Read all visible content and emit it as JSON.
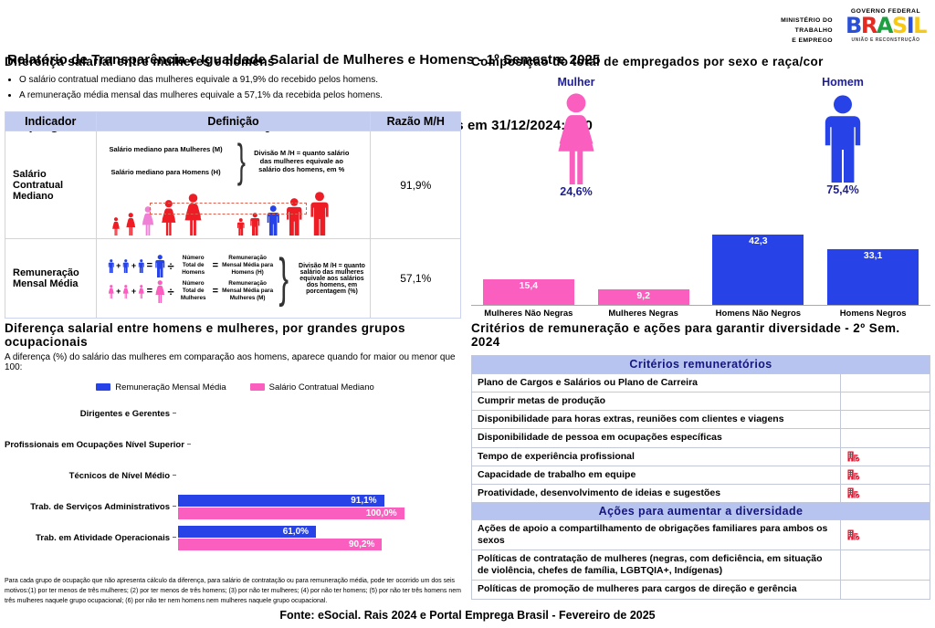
{
  "header": {
    "title_line1": "Relatório de Transparência e Igualdade Salarial de Mulheres e Homens - 1º Semestre 2025",
    "title_line2": "Empregador: 10.839.911/0001-60    /     Quant. de trabalhadores ativos em 31/12/2024: 130",
    "ministry": [
      "MINISTÉRIO DO",
      "TRABALHO",
      "E EMPREGO"
    ],
    "gov": {
      "top": "GOVERNO FEDERAL",
      "brand_letters": [
        {
          "c": "B",
          "color": "#2b50d8"
        },
        {
          "c": "R",
          "color": "#e52a22"
        },
        {
          "c": "A",
          "color": "#1f9e42"
        },
        {
          "c": "S",
          "color": "#f7c915"
        },
        {
          "c": "I",
          "color": "#2b50d8"
        },
        {
          "c": "L",
          "color": "#f7c915"
        }
      ],
      "bottom": "UNIÃO E RECONSTRUÇÃO"
    }
  },
  "pay_gap": {
    "title": "Diferença salarial entre mulheres e homens",
    "bullets": [
      "O salário contratual mediano das mulheres equivale a 91,9% do recebido pelos homens.",
      "A remuneração média mensal das mulheres equivale a 57,1% da recebida pelos homens."
    ],
    "symbols": {
      "plus": "+",
      "equals": "=",
      "divide": "÷"
    },
    "table": {
      "headers": [
        "Indicador",
        "Definição",
        "Razão M/H"
      ],
      "rows": [
        {
          "indicator": "Salário Contratual Mediano",
          "def_lines": [
            "Salário mediano para Mulheres (M)",
            "Salário mediano para Homens (H)"
          ],
          "def_note": "Divisão M /H = quanto salário das mulheres equivale ao salário dos homens, em %",
          "ratio": "91,9%"
        },
        {
          "indicator": "Remuneração Mensal Média",
          "men_divisor": "Número Total de Homens",
          "men_result": "Remuneração Mensal Média para Homens (H)",
          "women_divisor": "Número Total de Mulheres",
          "women_result": "Remuneração Mensal Média para Mulheres (M)",
          "def_note": "Divisão M /H = quanto salário das mulheres equivale aos salários dos homens, em porcentagem (%)",
          "ratio": "57,1%"
        }
      ]
    }
  },
  "composition": {
    "title": "Composição do total de empregados por sexo e raça/cor",
    "female_label": "Mulher",
    "female_value": "24,6%",
    "male_label": "Homem",
    "male_value": "75,4%"
  },
  "occupations": {
    "title": "Diferença salarial entre homens e mulheres, por grandes grupos ocupacionais",
    "subtitle": "A diferença (%) do salário das mulheres em comparação aos homens, aparece quando for maior ou menor que 100:",
    "footnote": "Para cada grupo de ocupação que não apresenta cálculo da diferença, para salário de contratação ou para remuneração média, pode ter ocorrido um dos seis motivos:(1) por ter menos de três mulheres; (2) por ter menos de três homens; (3) por não ter mulheres; (4) por não ter homens; (5) por não ter três homens nem três mulheres naquele grupo ocupacional; (6) por não ter nem homens nem mulheres naquele grupo ocupacional."
  },
  "criteria": {
    "title": "Critérios de remuneração e ações para garantir diversidade - 2º Sem. 2024",
    "sections": [
      {
        "header": "Critérios remuneratórios",
        "rows": [
          {
            "label": "Plano de Cargos e Salários ou Plano de Carreira",
            "marked": false
          },
          {
            "label": "Cumprir metas de produção",
            "marked": false
          },
          {
            "label": "Disponibilidade para horas extras, reuniões com clientes e viagens",
            "marked": false
          },
          {
            "label": "Disponibilidade de pessoa em ocupações específicas",
            "marked": false
          },
          {
            "label": "Tempo de experiência profissional",
            "marked": true
          },
          {
            "label": "Capacidade de trabalho em equipe",
            "marked": true
          },
          {
            "label": "Proatividade, desenvolvimento de ideias e sugestões",
            "marked": true
          }
        ]
      },
      {
        "header": "Ações para aumentar a diversidade",
        "rows": [
          {
            "label": "Ações de apoio a compartilhamento de obrigações familiares para ambos os sexos",
            "marked": true
          },
          {
            "label": "Políticas de contratação de mulheres (negras, com deficiência, em situação de violência, chefes de família, LGBTQIA+, Indígenas)",
            "marked": false
          },
          {
            "label": "Políticas de promoção de mulheres para cargos de direção e gerência",
            "marked": false
          }
        ]
      }
    ]
  },
  "footer": {
    "text": "Fonte: eSocial. Rais 2024 e Portal Emprega Brasil - Fevereiro de 2025"
  },
  "colors": {
    "red": "#ee1c25",
    "pink_bar": "#fa5fc0",
    "pink_person": "#f07fd6",
    "blue": "#2743e8",
    "navy_text": "#1e1e96",
    "table_header_bg": "#c2cbf0",
    "criteria_header_bg": "#b8c4f0"
  },
  "chart_data": [
    {
      "type": "bar",
      "title": "Composição do total de empregados por sexo e raça/cor",
      "categories": [
        "Mulheres Não Negras",
        "Mulheres Negras",
        "Homens Não Negros",
        "Homens Negros"
      ],
      "values": [
        15.4,
        9.2,
        42.3,
        33.1
      ],
      "labels": [
        "15,4",
        "9,2",
        "42,3",
        "33,1"
      ],
      "colors": [
        "#fa5fc0",
        "#fa5fc0",
        "#2743e8",
        "#2743e8"
      ],
      "ylim": [
        0,
        47
      ],
      "grid": false,
      "extra": {
        "female_pct": 24.6,
        "male_pct": 75.4
      }
    },
    {
      "type": "bar-horizontal",
      "title": "Diferença salarial entre homens e mulheres, por grandes grupos ocupacionais",
      "categories": [
        "Dirigentes e Gerentes",
        "Profissionais em Ocupações Nível Superior",
        "Técnicos de Nível Médio",
        "Trab. de Serviços Administrativos",
        "Trab. em Atividade Operacionais"
      ],
      "series": [
        {
          "name": "Remuneração Mensal Média",
          "color": "#2743e8",
          "values": [
            null,
            null,
            null,
            91.1,
            61.0
          ],
          "labels": [
            "",
            "",
            "",
            "91,1%",
            "61,0%"
          ]
        },
        {
          "name": "Salário Contratual Mediano",
          "color": "#fa5fc0",
          "values": [
            null,
            null,
            null,
            100.0,
            90.2
          ],
          "labels": [
            "",
            "",
            "",
            "100,0%",
            "90,2%"
          ]
        }
      ],
      "xlim": [
        0,
        105
      ],
      "legend_position": "top",
      "grid": false
    }
  ]
}
